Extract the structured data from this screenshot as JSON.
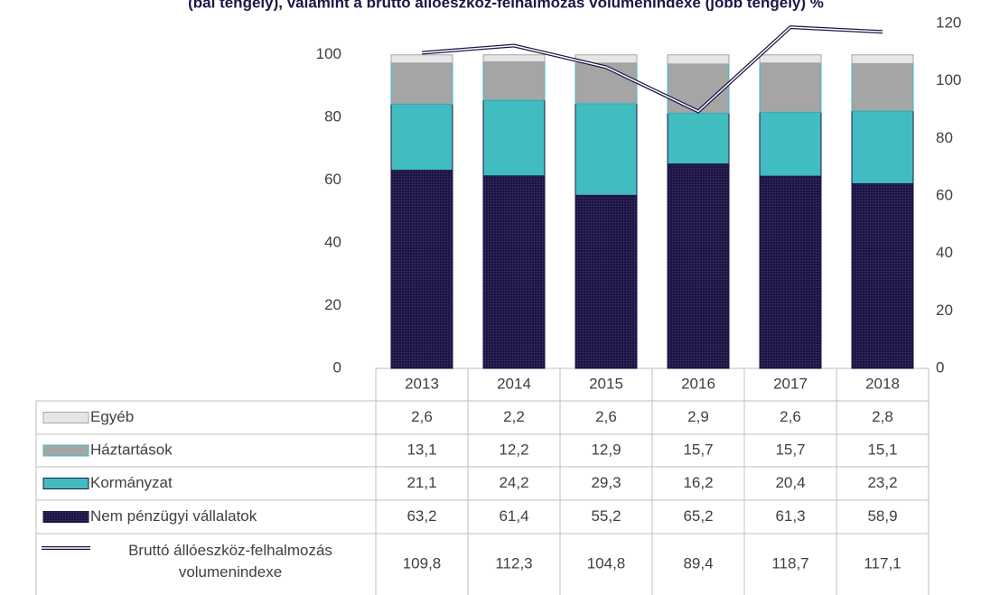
{
  "chart_data": {
    "type": "bar",
    "title": "(bal tengely), valamint a bruttó állóeszköz-felhalmozás volumenindexe (jobb tengely) %",
    "categories": [
      "2013",
      "2014",
      "2015",
      "2016",
      "2017",
      "2018"
    ],
    "ylim": [
      0,
      110
    ],
    "yticks": [
      0,
      20,
      40,
      60,
      80,
      100
    ],
    "y2lim": [
      0,
      120
    ],
    "y2ticks": [
      0,
      20,
      40,
      60,
      80,
      100,
      120
    ],
    "series": [
      {
        "name": "Egyéb",
        "color": "#e6e6e6",
        "values": [
          2.6,
          2.2,
          2.6,
          2.9,
          2.6,
          2.8
        ],
        "value_labels": [
          "2,6",
          "2,2",
          "2,6",
          "2,9",
          "2,6",
          "2,8"
        ]
      },
      {
        "name": "Háztartások",
        "color": "#a5a5a5",
        "values": [
          13.1,
          12.2,
          12.9,
          15.7,
          15.7,
          15.1
        ],
        "value_labels": [
          "13,1",
          "12,2",
          "12,9",
          "15,7",
          "15,7",
          "15,1"
        ]
      },
      {
        "name": "Kormányzat",
        "color": "#41bcc0",
        "values": [
          21.1,
          24.2,
          29.3,
          16.2,
          20.4,
          23.2
        ],
        "value_labels": [
          "21,1",
          "24,2",
          "29,3",
          "16,2",
          "20,4",
          "23,2"
        ]
      },
      {
        "name": "Nem pénzügyi vállalatok",
        "color": "#1e1646",
        "values": [
          63.2,
          61.4,
          55.2,
          65.2,
          61.3,
          58.9
        ],
        "value_labels": [
          "63,2",
          "61,4",
          "55,2",
          "65,2",
          "61,3",
          "58,9"
        ]
      },
      {
        "name": "Bruttó állóeszköz-felhalmozás volumenindexe",
        "color": "#1e1646",
        "type": "line",
        "axis": "y2",
        "values": [
          109.8,
          112.3,
          104.8,
          89.4,
          118.7,
          117.1
        ],
        "value_labels": [
          "109,8",
          "112,3",
          "104,8",
          "89,4",
          "118,7",
          "117,1"
        ]
      }
    ]
  }
}
